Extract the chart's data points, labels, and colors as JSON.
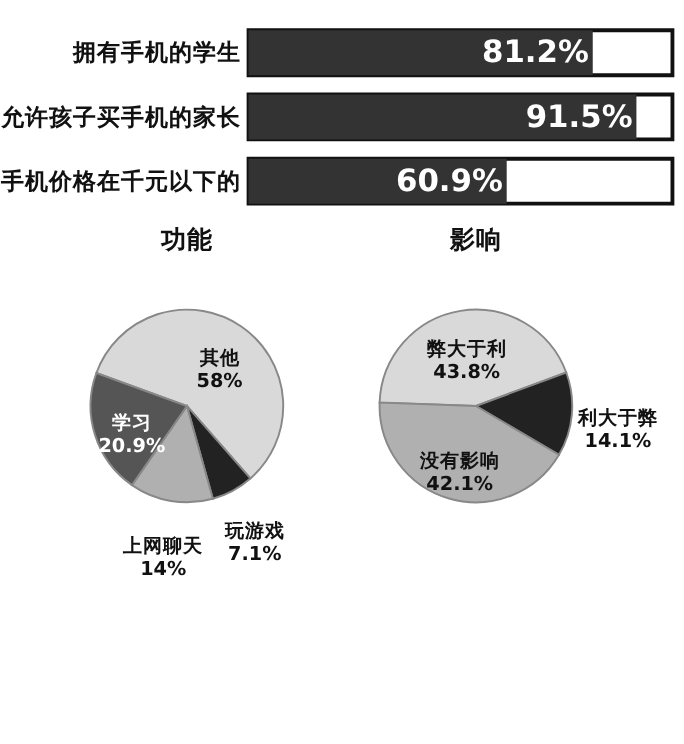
{
  "chart_data": [
    {
      "type": "bar",
      "orientation": "horizontal",
      "categories": [
        "拥有手机的学生",
        "允许孩子买手机的家长",
        "手机价格在千元以下的"
      ],
      "values": [
        81.2,
        91.5,
        60.9
      ],
      "value_labels": [
        "81.2%",
        "91.5%",
        "60.9%"
      ],
      "color": "#333333",
      "xlim": [
        0,
        100
      ],
      "tick_labels": "y"
    },
    {
      "type": "pie",
      "title": "功能",
      "categories": [
        "其他",
        "玩游戏",
        "上网聊天",
        "学习"
      ],
      "values": [
        58,
        7.1,
        14,
        20.9
      ],
      "value_labels": [
        "58%",
        "7.1%",
        "14%",
        "20.9%"
      ],
      "colors": [
        "#d9d9d9",
        "#222222",
        "#b0b0b0",
        "#555555"
      ]
    },
    {
      "type": "pie",
      "title": "影响",
      "categories": [
        "弊大于利",
        "利大于弊",
        "没有影响"
      ],
      "values": [
        43.8,
        14.1,
        42.1
      ],
      "value_labels": [
        "43.8%",
        "14.1%",
        "42.1%"
      ],
      "colors": [
        "#d9d9d9",
        "#222222",
        "#aaaaaa"
      ]
    }
  ]
}
